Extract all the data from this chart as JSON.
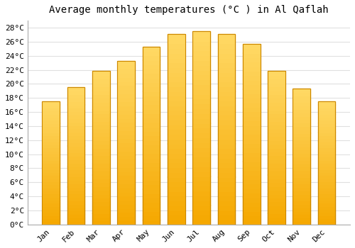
{
  "title": "Average monthly temperatures (°C ) in Al Qaflah",
  "months": [
    "Jan",
    "Feb",
    "Mar",
    "Apr",
    "May",
    "Jun",
    "Jul",
    "Aug",
    "Sep",
    "Oct",
    "Nov",
    "Dec"
  ],
  "values": [
    17.5,
    19.5,
    21.8,
    23.3,
    25.3,
    27.1,
    27.5,
    27.1,
    25.7,
    21.8,
    19.3,
    17.5
  ],
  "bar_color_bottom": "#F5A800",
  "bar_color_top": "#FFD966",
  "bar_edge_color": "#CC8800",
  "ylim": [
    0,
    29
  ],
  "ytick_step": 2,
  "background_color": "#ffffff",
  "plot_bg_color": "#ffffff",
  "grid_color": "#e0e0e0",
  "title_fontsize": 10,
  "tick_fontsize": 8,
  "font_family": "monospace"
}
